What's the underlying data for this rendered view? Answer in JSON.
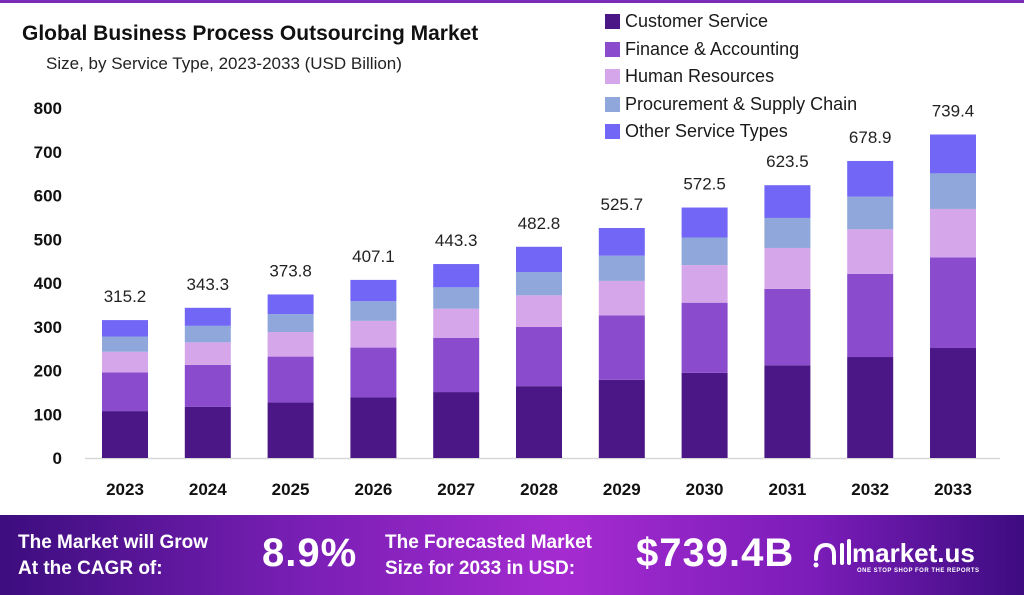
{
  "chart_data": {
    "type": "bar",
    "stacked": true,
    "title": "Global Business Process Outsourcing Market",
    "subtitle": "Size, by Service Type, 2023-2033 (USD Billion)",
    "categories": [
      "2023",
      "2024",
      "2025",
      "2026",
      "2027",
      "2028",
      "2029",
      "2030",
      "2031",
      "2032",
      "2033"
    ],
    "totals": [
      "315.2",
      "343.3",
      "373.8",
      "407.1",
      "443.3",
      "482.8",
      "525.7",
      "572.5",
      "623.5",
      "678.9",
      "739.4"
    ],
    "series": [
      {
        "name": "Customer Service",
        "color": "#4b1786",
        "values": [
          107.2,
          116.7,
          127.1,
          138.4,
          150.7,
          164.2,
          178.7,
          194.7,
          212.0,
          230.8,
          251.4
        ]
      },
      {
        "name": "Finance & Accounting",
        "color": "#8a4ccc",
        "values": [
          88.3,
          96.1,
          104.7,
          114.0,
          124.1,
          135.2,
          147.2,
          160.3,
          174.6,
          190.1,
          207.0
        ]
      },
      {
        "name": "Human Resources",
        "color": "#d6a6ea",
        "values": [
          47.3,
          51.5,
          56.1,
          61.1,
          66.5,
          72.4,
          78.9,
          85.9,
          93.5,
          101.8,
          110.9
        ]
      },
      {
        "name": "Procurement & Supply Chain",
        "color": "#8fa7da",
        "values": [
          34.7,
          37.8,
          41.1,
          44.8,
          48.8,
          53.1,
          57.8,
          63.0,
          68.6,
          74.7,
          81.3
        ]
      },
      {
        "name": "Other Service Types",
        "color": "#7166f5",
        "values": [
          37.7,
          41.2,
          44.8,
          48.8,
          53.2,
          57.9,
          63.1,
          68.6,
          74.8,
          81.5,
          88.8
        ]
      }
    ],
    "yticks": [
      "0",
      "100",
      "200",
      "300",
      "400",
      "500",
      "600",
      "700",
      "800"
    ],
    "ylim": [
      0,
      800
    ],
    "grid": false,
    "legend": "top-right"
  },
  "banner": {
    "cagr_label_1": "The Market will Grow",
    "cagr_label_2": "At the CAGR of:",
    "cagr_value": "8.9%",
    "forecast_label_1": "The Forecasted Market",
    "forecast_label_2": "Size for 2033 in USD:",
    "forecast_value": "$739.4B",
    "brand": "market.us",
    "tagline": "ONE STOP SHOP FOR THE REPORTS"
  }
}
